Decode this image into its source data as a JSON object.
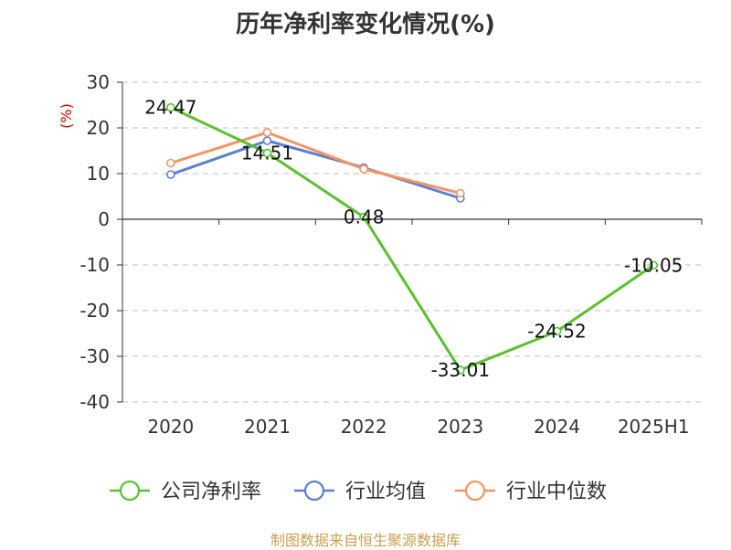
{
  "chart_data": {
    "type": "line",
    "title": "历年净利率变化情况(%)",
    "ylabel": "(%)",
    "xlabel": "",
    "categories": [
      "2020",
      "2021",
      "2022",
      "2023",
      "2024",
      "2025H1"
    ],
    "ylim": [
      -40,
      30
    ],
    "yticks": [
      30,
      20,
      10,
      0,
      -10,
      -20,
      -30,
      -40
    ],
    "grid": true,
    "legend_position": "bottom",
    "series": [
      {
        "name": "公司净利率",
        "color": "#5ac12e",
        "values": [
          24.47,
          14.51,
          0.48,
          -33.01,
          -24.52,
          -10.05
        ],
        "labels": [
          "24.47",
          "14.51",
          "0.48",
          "-33.01",
          "-24.52",
          "-10.05"
        ]
      },
      {
        "name": "行业均值",
        "color": "#5b7fd6",
        "values": [
          9.8,
          17.2,
          11.3,
          4.6,
          null,
          null
        ]
      },
      {
        "name": "行业中位数",
        "color": "#f39562",
        "values": [
          12.3,
          19.0,
          11.0,
          5.7,
          null,
          null
        ]
      }
    ]
  },
  "footer": {
    "source": "制图数据来自恒生聚源数据库"
  }
}
